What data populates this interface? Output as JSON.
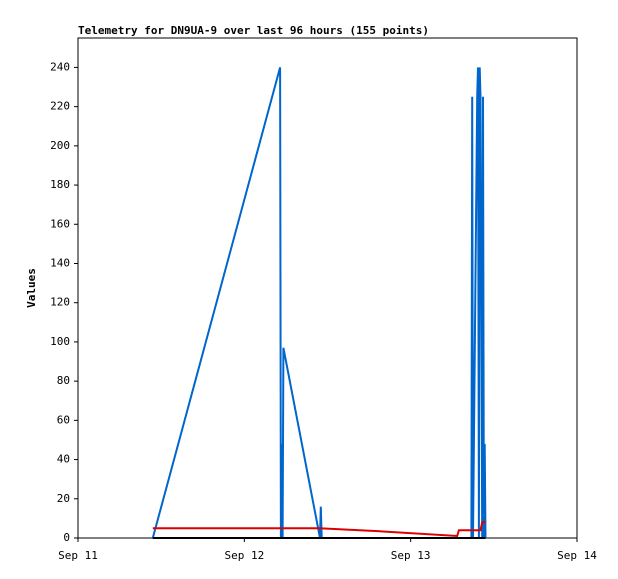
{
  "chart_data": {
    "type": "line",
    "title": "Telemetry for DN9UA-9 over last 96 hours (155 points)",
    "y_label": "Values",
    "xlim": [
      11,
      14
    ],
    "xticks": [
      {
        "value": 11,
        "label": "Sep 11"
      },
      {
        "value": 12,
        "label": "Sep 12"
      },
      {
        "value": 13,
        "label": "Sep 13"
      },
      {
        "value": 14,
        "label": "Sep 14"
      }
    ],
    "ylim": [
      0,
      255
    ],
    "yticks": [
      0,
      20,
      40,
      60,
      80,
      100,
      120,
      140,
      160,
      180,
      200,
      220,
      240
    ],
    "grid": false,
    "series": [
      {
        "color": "#000000",
        "x": [
          11.45,
          13.45
        ],
        "values": [
          0,
          0
        ]
      },
      {
        "color": "#0066cc",
        "x": [
          11.45,
          12.215,
          12.22,
          12.225,
          12.23,
          12.235,
          12.455,
          12.46,
          12.465,
          13.365,
          13.37,
          13.375,
          13.4,
          13.405,
          13.41,
          13.415,
          13.42,
          13.43,
          13.435,
          13.44,
          13.445,
          13.45
        ],
        "values": [
          0,
          240,
          0,
          48,
          0,
          97,
          0,
          16,
          0,
          0,
          225,
          0,
          225,
          240,
          0,
          240,
          225,
          0,
          225,
          0,
          48,
          0
        ]
      },
      {
        "color": "#dd0000",
        "x": [
          11.45,
          12.45,
          12.8,
          13.28,
          13.29,
          13.42,
          13.43,
          13.45
        ],
        "values": [
          5,
          5,
          3.5,
          1,
          4,
          4,
          8,
          8
        ]
      }
    ]
  }
}
